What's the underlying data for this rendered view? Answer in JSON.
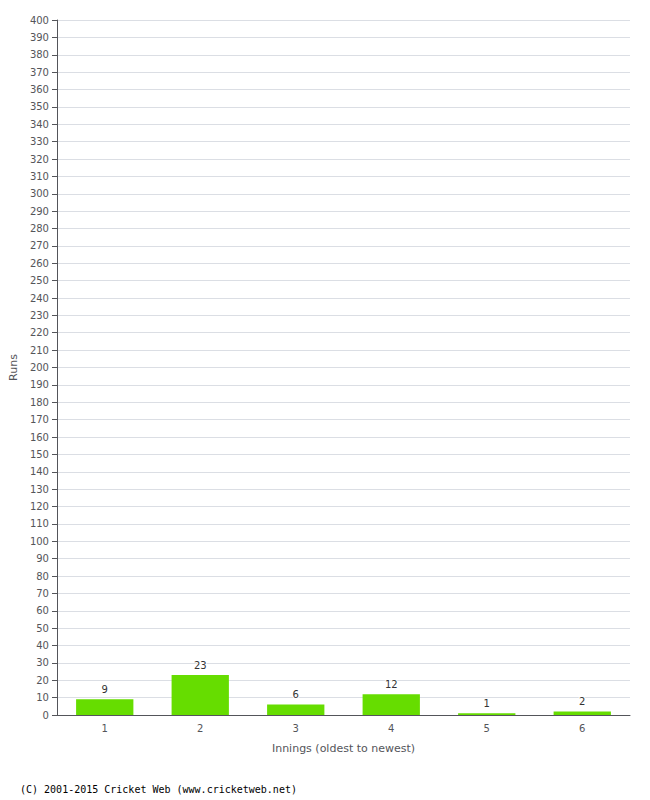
{
  "chart_data": {
    "type": "bar",
    "categories": [
      1,
      2,
      3,
      4,
      5,
      6
    ],
    "values": [
      9,
      23,
      6,
      12,
      1,
      2
    ],
    "color": "#66dd00",
    "xlabel": "Innings (oldest to newest)",
    "ylabel": "Runs",
    "ylim": [
      0,
      400
    ],
    "yticks": [
      0,
      10,
      20,
      30,
      40,
      50,
      60,
      70,
      80,
      90,
      100,
      110,
      120,
      130,
      140,
      150,
      160,
      170,
      180,
      190,
      200,
      210,
      220,
      230,
      240,
      250,
      260,
      270,
      280,
      290,
      300,
      310,
      320,
      330,
      340,
      350,
      360,
      370,
      380,
      390,
      400
    ],
    "grid": true,
    "data_labels": true,
    "footer": "(C) 2001-2015 Cricket Web (www.cricketweb.net)"
  }
}
